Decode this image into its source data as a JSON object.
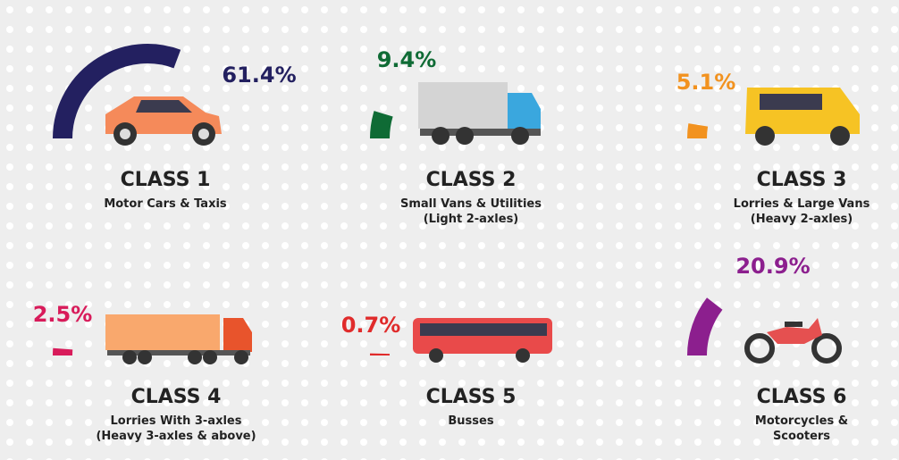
{
  "chart_data": {
    "type": "gauge",
    "categories": [
      "CLASS 1",
      "CLASS 2",
      "CLASS 3",
      "CLASS 4",
      "CLASS 5",
      "CLASS 6"
    ],
    "descriptions": [
      [
        "Motor Cars & Taxis"
      ],
      [
        "Small Vans & Utilities",
        "(Light 2-axles)"
      ],
      [
        "Lorries & Large Vans",
        "(Heavy 2-axles)"
      ],
      [
        "Lorries With 3-axles",
        "(Heavy 3-axles & above)"
      ],
      [
        "Busses"
      ],
      [
        "Motorcycles &",
        "Scooters"
      ]
    ],
    "values": [
      61.4,
      9.4,
      5.1,
      2.5,
      0.7,
      20.9
    ],
    "value_labels": [
      "61.4%",
      "9.4%",
      "5.1%",
      "2.5%",
      "0.7%",
      "20.9%"
    ],
    "colors": [
      "#232060",
      "#0f6b35",
      "#f2921f",
      "#d81b5a",
      "#e02b2b",
      "#8c1f8e"
    ]
  }
}
